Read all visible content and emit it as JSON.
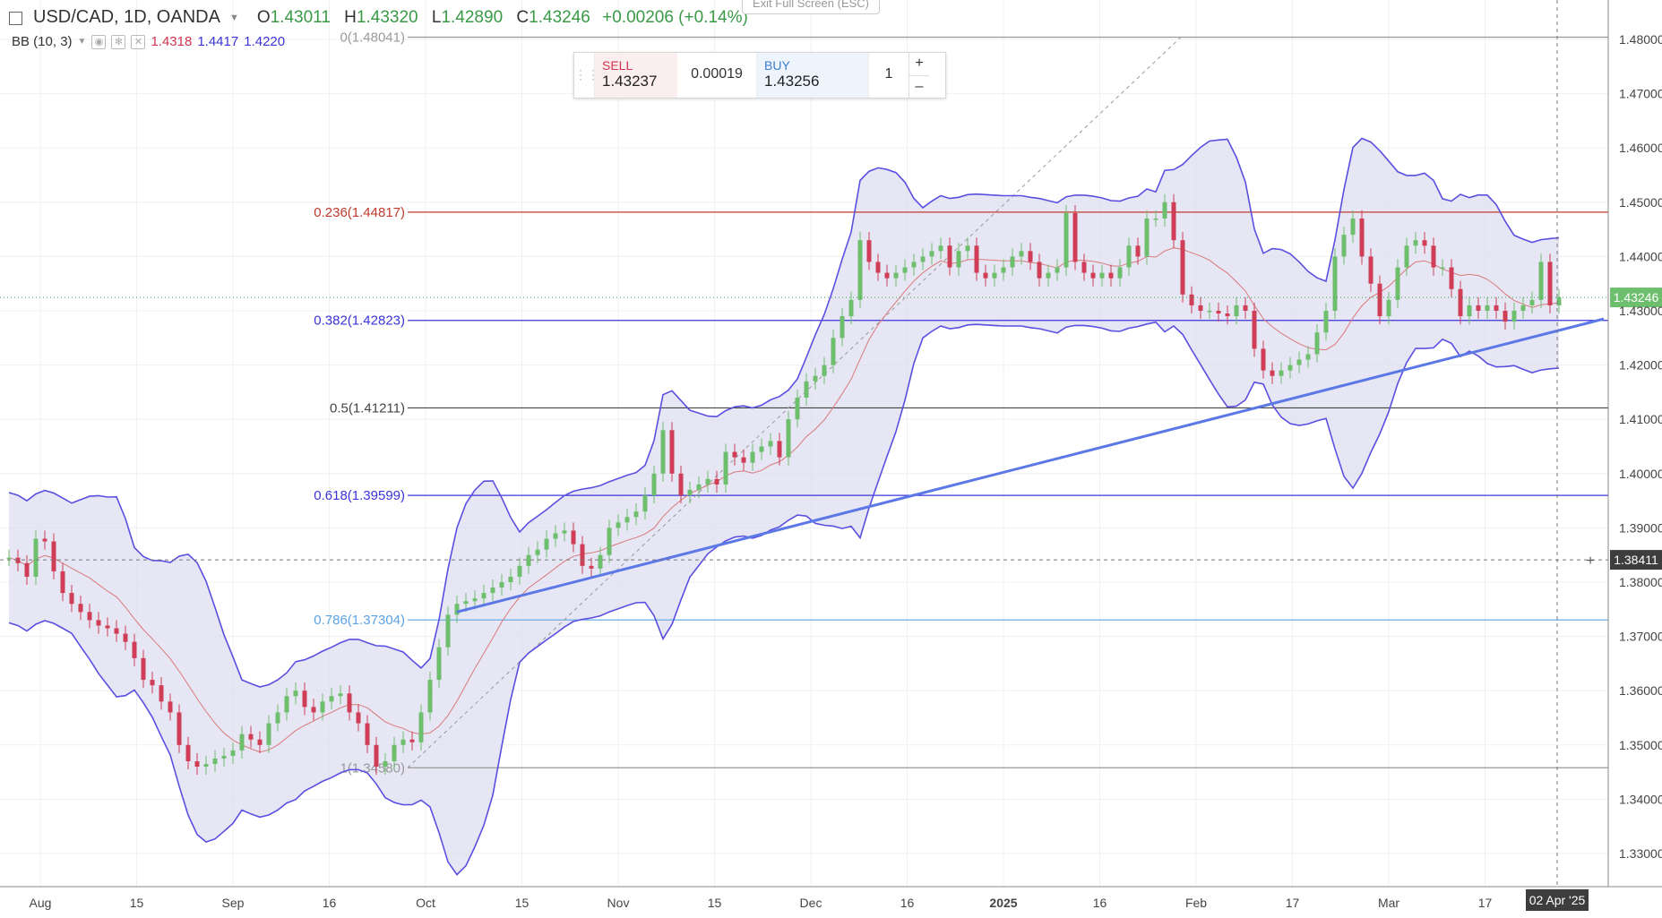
{
  "header": {
    "symbol": "USD/CAD, 1D, OANDA",
    "open_label": "O",
    "open": "1.43011",
    "high_label": "H",
    "high": "1.43320",
    "low_label": "L",
    "low": "1.42890",
    "close_label": "C",
    "close": "1.43246",
    "change": "+0.00206 (+0.14%)",
    "bb_label": "BB (10, 3)",
    "bb_basis": "1.4318",
    "bb_upper": "1.4417",
    "bb_lower": "1.4220",
    "exit_fullscreen": "Exit Full Screen (ESC)"
  },
  "trade_panel": {
    "sell_label": "SELL",
    "sell_price": "1.43237",
    "spread": "0.00019",
    "buy_label": "BUY",
    "buy_price": "1.43256",
    "quantity": "1",
    "plus": "+",
    "minus": "–"
  },
  "crosshair_label": "1.38411",
  "current_price_label": "1.43246",
  "date_label": "02 Apr '25",
  "colors": {
    "up": "#6dbe6d",
    "down": "#cf3d56",
    "band": "#5a4fe0",
    "band_fill": "#ddddf0",
    "basis": "#d97a7a",
    "trendline": "#5b78e6",
    "fib_0236": "#c0392b",
    "fib_0382": "#3b33d9",
    "fib_05": "#444444",
    "fib_0618": "#3b33d9",
    "fib_0786": "#5aa3e6",
    "fib_edge": "#999999"
  },
  "chart_data": {
    "type": "candlestick",
    "title": "USD/CAD, 1D, OANDA",
    "ylim": [
      1.325,
      1.484
    ],
    "y_ticks": [
      "1.48000",
      "1.47000",
      "1.46000",
      "1.45000",
      "1.44000",
      "1.43000",
      "1.42000",
      "1.41000",
      "1.40000",
      "1.39000",
      "1.38000",
      "1.37000",
      "1.36000",
      "1.35000",
      "1.34000",
      "1.33000"
    ],
    "x_tick_labels": [
      "Aug",
      "15",
      "Sep",
      "16",
      "Oct",
      "15",
      "Nov",
      "15",
      "Dec",
      "16",
      "2025",
      "16",
      "Feb",
      "17",
      "Mar",
      "17"
    ],
    "fib_levels": [
      {
        "ratio": "0",
        "value": 1.48041,
        "label": "0(1.48041)"
      },
      {
        "ratio": "0.236",
        "value": 1.44817,
        "label": "0.236(1.44817)"
      },
      {
        "ratio": "0.382",
        "value": 1.42823,
        "label": "0.382(1.42823)"
      },
      {
        "ratio": "0.5",
        "value": 1.41211,
        "label": "0.5(1.41211)"
      },
      {
        "ratio": "0.618",
        "value": 1.39599,
        "label": "0.618(1.39599)"
      },
      {
        "ratio": "0.786",
        "value": 1.37304,
        "label": "0.786(1.37304)"
      },
      {
        "ratio": "1",
        "value": 1.3458,
        "label": "1(1.34580)"
      }
    ],
    "crosshair_value": 1.38411,
    "last_close": 1.43246,
    "trendline": {
      "from_index": 50,
      "from_value": 1.3745,
      "to_index": 180,
      "to_value": 1.4285
    },
    "candles_close": [
      1.3845,
      1.3835,
      1.381,
      1.388,
      1.3875,
      1.382,
      1.378,
      1.376,
      1.3745,
      1.373,
      1.372,
      1.3715,
      1.3705,
      1.369,
      1.366,
      1.362,
      1.361,
      1.358,
      1.356,
      1.35,
      1.347,
      1.346,
      1.3465,
      1.3475,
      1.348,
      1.349,
      1.352,
      1.351,
      1.35,
      1.354,
      1.356,
      1.359,
      1.36,
      1.357,
      1.356,
      1.358,
      1.359,
      1.3595,
      1.356,
      1.354,
      1.35,
      1.346,
      1.347,
      1.35,
      1.351,
      1.3505,
      1.356,
      1.362,
      1.368,
      1.374,
      1.376,
      1.3765,
      1.377,
      1.378,
      1.379,
      1.38,
      1.381,
      1.383,
      1.385,
      1.386,
      1.388,
      1.389,
      1.3895,
      1.387,
      1.383,
      1.3825,
      1.385,
      1.39,
      1.391,
      1.392,
      1.393,
      1.396,
      1.4,
      1.408,
      1.4,
      1.396,
      1.397,
      1.398,
      1.399,
      1.398,
      1.404,
      1.403,
      1.402,
      1.404,
      1.405,
      1.406,
      1.403,
      1.41,
      1.414,
      1.417,
      1.418,
      1.42,
      1.425,
      1.429,
      1.432,
      1.443,
      1.439,
      1.437,
      1.436,
      1.437,
      1.438,
      1.439,
      1.44,
      1.441,
      1.442,
      1.438,
      1.441,
      1.442,
      1.437,
      1.436,
      1.437,
      1.438,
      1.44,
      1.441,
      1.439,
      1.436,
      1.437,
      1.438,
      1.448,
      1.439,
      1.437,
      1.436,
      1.437,
      1.436,
      1.438,
      1.442,
      1.44,
      1.447,
      1.447,
      1.45,
      1.443,
      1.433,
      1.431,
      1.43,
      1.43,
      1.4295,
      1.429,
      1.431,
      1.43,
      1.423,
      1.419,
      1.418,
      1.419,
      1.42,
      1.421,
      1.422,
      1.426,
      1.43,
      1.44,
      1.444,
      1.447,
      1.44,
      1.435,
      1.429,
      1.432,
      1.438,
      1.442,
      1.443,
      1.442,
      1.438,
      1.438,
      1.434,
      1.429,
      1.431,
      1.43,
      1.431,
      1.43,
      1.428,
      1.43,
      1.431,
      1.432,
      1.439,
      1.431,
      1.4325
    ],
    "series": [
      {
        "name": "BB basis",
        "values": [
          1.382,
          1.381,
          1.379,
          1.376,
          1.373,
          1.37,
          1.367,
          1.364,
          1.361,
          1.358,
          1.355,
          1.352,
          1.351,
          1.35,
          1.3505,
          1.3515,
          1.3525,
          1.354,
          1.356,
          1.357,
          1.356,
          1.354,
          1.352,
          1.351,
          1.3505,
          1.352,
          1.356,
          1.36,
          1.364,
          1.368,
          1.372,
          1.375,
          1.378,
          1.381,
          1.384,
          1.386,
          1.388,
          1.39,
          1.392,
          1.394,
          1.396,
          1.3975,
          1.3985,
          1.3995,
          1.4005,
          1.402,
          1.404,
          1.408,
          1.412,
          1.416,
          1.42,
          1.424,
          1.428,
          1.43,
          1.433,
          1.436,
          1.437,
          1.438,
          1.4385,
          1.439,
          1.439,
          1.4385,
          1.438,
          1.4385,
          1.439,
          1.439,
          1.4385,
          1.4375,
          1.437,
          1.437,
          1.438,
          1.439,
          1.44,
          1.441,
          1.44,
          1.438,
          1.436,
          1.433,
          1.43,
          1.428,
          1.426,
          1.425,
          1.4245,
          1.426,
          1.429,
          1.433,
          1.436,
          1.4375,
          1.438,
          1.4385,
          1.437,
          1.4355,
          1.4345,
          1.433,
          1.432
        ]
      },
      {
        "name": "BB upper",
        "values": []
      },
      {
        "name": "BB lower",
        "values": []
      }
    ]
  }
}
